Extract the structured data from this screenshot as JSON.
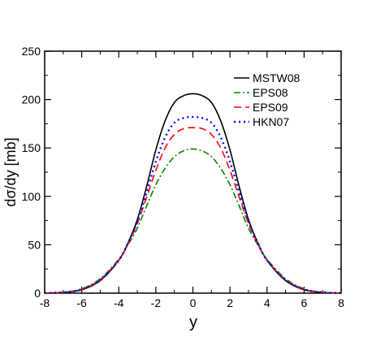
{
  "chart_data": {
    "type": "line",
    "title": "",
    "xlabel": "y",
    "ylabel": "dσ/dy [mb]",
    "xlim": [
      -8,
      8
    ],
    "ylim": [
      0,
      250
    ],
    "xticks": [
      -8,
      -6,
      -4,
      -2,
      0,
      2,
      4,
      6,
      8
    ],
    "yticks": [
      0,
      50,
      100,
      150,
      200,
      250
    ],
    "grid": false,
    "legend_position": "top-right",
    "x": [
      -8,
      -7,
      -6,
      -5,
      -4,
      -3.5,
      -3,
      -2.5,
      -2,
      -1.5,
      -1,
      -0.5,
      0,
      0.5,
      1,
      1.5,
      2,
      2.5,
      3,
      3.5,
      4,
      5,
      6,
      7,
      8
    ],
    "series": [
      {
        "name": "MSTW08",
        "color": "#000000",
        "dash": "solid",
        "values": [
          0.1,
          0.8,
          3.5,
          13,
          34,
          52,
          76,
          110,
          148,
          178,
          197,
          204,
          206,
          204,
          197,
          178,
          148,
          110,
          76,
          52,
          34,
          13,
          3.5,
          0.8,
          0.1
        ]
      },
      {
        "name": "EPS08",
        "color": "#008800",
        "dash": "dashdot",
        "values": [
          0.1,
          1.0,
          4.5,
          15,
          35,
          50,
          67,
          90,
          112,
          129,
          141,
          147,
          149,
          147,
          141,
          129,
          112,
          90,
          67,
          50,
          35,
          15,
          4.5,
          1.0,
          0.1
        ]
      },
      {
        "name": "EPS09",
        "color": "#ff0000",
        "dash": "dashed",
        "values": [
          0.1,
          0.9,
          4.0,
          14,
          34,
          51,
          72,
          99,
          127,
          150,
          164,
          170,
          171,
          170,
          164,
          150,
          127,
          99,
          72,
          51,
          34,
          14,
          4.0,
          0.9,
          0.1
        ]
      },
      {
        "name": "HKN07",
        "color": "#0000ff",
        "dash": "dotted",
        "values": [
          0.1,
          0.8,
          3.8,
          13.5,
          34,
          52,
          74,
          104,
          136,
          161,
          176,
          181,
          182,
          181,
          176,
          161,
          136,
          104,
          74,
          52,
          34,
          13.5,
          3.8,
          0.8,
          0.1
        ]
      }
    ]
  }
}
